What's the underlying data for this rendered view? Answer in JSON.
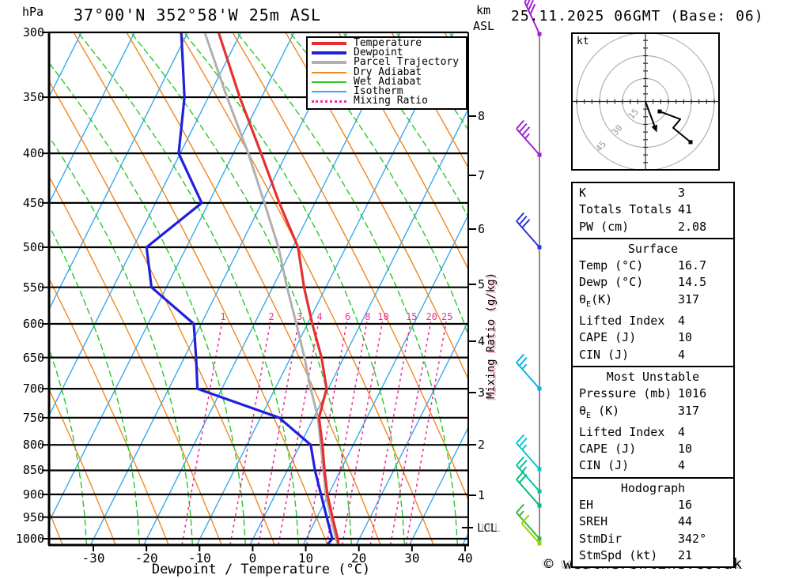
{
  "header": {
    "pressure_unit": "hPa",
    "station_title": "37°00'N 352°58'W 25m ASL",
    "alt_unit_line1": "km",
    "alt_unit_line2": "ASL",
    "datetime": "25.11.2025 06GMT (Base: 06)",
    "copyright": "© weatheronline.co.uk"
  },
  "axes": {
    "pressure_ticks": [
      300,
      350,
      400,
      450,
      500,
      550,
      600,
      650,
      700,
      750,
      800,
      850,
      900,
      950,
      1000
    ],
    "temp_ticks": [
      -30,
      -20,
      -10,
      0,
      10,
      20,
      30,
      40
    ],
    "xlabel": "Dewpoint / Temperature (°C)",
    "km_ticks": [
      8,
      7,
      6,
      5,
      4,
      3,
      2,
      1
    ],
    "lcl_label": "LCL",
    "mixing_ratio_axis_label": "Mixing Ratio (g/kg)",
    "mixing_ratio_values": [
      1,
      2,
      3,
      4,
      6,
      8,
      10,
      15,
      20,
      25
    ]
  },
  "legend": [
    {
      "label": "Temperature",
      "color": "#e63030",
      "style": "thick"
    },
    {
      "label": "Dewpoint",
      "color": "#2020dd",
      "style": "thick"
    },
    {
      "label": "Parcel Trajectory",
      "color": "#b0b0b0",
      "style": "thick"
    },
    {
      "label": "Dry Adiabat",
      "color": "#f08820",
      "style": "thin"
    },
    {
      "label": "Wet Adiabat",
      "color": "#28c828",
      "style": "thin"
    },
    {
      "label": "Isotherm",
      "color": "#38aaf0",
      "style": "thin"
    },
    {
      "label": "Mixing Ratio",
      "color": "#f03098",
      "style": "dotted"
    }
  ],
  "chart_data": {
    "type": "skewt_sounding",
    "title": "37°00'N 352°58'W 25m ASL",
    "xlabel": "Dewpoint / Temperature (°C)",
    "ylabel": "hPa",
    "x_range_c": [
      -38,
      41
    ],
    "pressure_range_hpa": [
      300,
      1016
    ],
    "grid": "skew-t log-p (isotherms, dry/wet adiabats, mixing ratio lines)",
    "legend_position": "top-right",
    "pressure_hpa": [
      300,
      350,
      400,
      450,
      500,
      550,
      600,
      650,
      700,
      750,
      800,
      850,
      900,
      950,
      1000,
      1016
    ],
    "series": [
      {
        "name": "Temperature",
        "temps_c": [
          -54.2,
          -44.1,
          -34.8,
          -26.7,
          -19.0,
          -14.1,
          -9.1,
          -4.2,
          -0.3,
          1.0,
          4.2,
          7.0,
          9.8,
          12.9,
          15.9,
          16.7
        ]
      },
      {
        "name": "Dewpoint",
        "temps_c": [
          -61.2,
          -54.5,
          -50.3,
          -41.3,
          -47.5,
          -42.8,
          -31.4,
          -27.8,
          -24.6,
          -6.5,
          2.0,
          5.2,
          8.6,
          11.8,
          14.9,
          14.5
        ]
      },
      {
        "name": "Parcel Trajectory",
        "temps_c": [
          -56.8,
          -46.5,
          -37.2,
          -29.5,
          -22.7,
          -17.3,
          -12.1,
          -7.4,
          -3.3,
          0.8,
          3.9,
          6.8,
          9.5,
          12.6,
          15.6,
          16.7
        ]
      }
    ]
  },
  "wind_barbs": [
    {
      "y": 43,
      "color": "#a020d0",
      "full": 4,
      "half": 0,
      "steep": true
    },
    {
      "y": 196,
      "color": "#a020d0",
      "full": 3,
      "half": 1
    },
    {
      "y": 313,
      "color": "#2830e0",
      "full": 3,
      "half": 0
    },
    {
      "y": 492,
      "color": "#00b4e4",
      "full": 2,
      "half": 1
    },
    {
      "y": 594,
      "color": "#00c8d4",
      "full": 2,
      "half": 1
    },
    {
      "y": 622,
      "color": "#00c49c",
      "full": 2,
      "half": 1
    },
    {
      "y": 640,
      "color": "#00bc7c",
      "full": 2,
      "half": 0
    },
    {
      "y": 682,
      "color": "#38b838",
      "full": 1,
      "half": 1
    },
    {
      "y": 688,
      "color": "#94d400",
      "full": 1,
      "half": 0,
      "short": true
    }
  ],
  "hodograph": {
    "unit_label": "kt",
    "rings_kt": [
      15,
      30,
      45
    ],
    "trace_kt": [
      [
        9.3,
        -6.5
      ],
      [
        22.8,
        -11.6
      ],
      [
        18.1,
        -17.3
      ],
      [
        29.5,
        -26.6
      ]
    ],
    "storm_motion": {
      "dir_deg": 342,
      "spd_kt": 21,
      "arrow_kt": [
        6.2,
        -16.8
      ]
    }
  },
  "stats_sections": [
    {
      "title": "",
      "rows": [
        [
          "K",
          "3"
        ],
        [
          "Totals Totals",
          "41"
        ],
        [
          "PW (cm)",
          "2.08"
        ]
      ]
    },
    {
      "title": "Surface",
      "rows": [
        [
          "Temp (°C)",
          "16.7"
        ],
        [
          "Dewp (°C)",
          "14.5"
        ],
        [
          "θE(K)",
          "317"
        ],
        [
          "Lifted Index",
          "4"
        ],
        [
          "CAPE (J)",
          "10"
        ],
        [
          "CIN (J)",
          "4"
        ]
      ]
    },
    {
      "title": "Most Unstable",
      "rows": [
        [
          "Pressure (mb)",
          "1016"
        ],
        [
          "θE (K)",
          "317"
        ],
        [
          "Lifted Index",
          "4"
        ],
        [
          "CAPE (J)",
          "10"
        ],
        [
          "CIN (J)",
          "4"
        ]
      ]
    },
    {
      "title": "Hodograph",
      "rows": [
        [
          "EH",
          "16"
        ],
        [
          "SREH",
          "44"
        ],
        [
          "StmDir",
          "342°"
        ],
        [
          "StmSpd (kt)",
          "21"
        ]
      ]
    }
  ],
  "colors": {
    "temperature": "#e63030",
    "dewpoint": "#2020dd",
    "parcel": "#b0b0b0",
    "dry_adiabat": "#f08820",
    "wet_adiabat": "#28c828",
    "isotherm": "#38aaf0",
    "mixing_ratio": "#f03098",
    "pressure_line": "#000000",
    "barb_line": "#707070",
    "hodo_ring": "#b0b0b0",
    "hodo_axis": "#303030"
  }
}
